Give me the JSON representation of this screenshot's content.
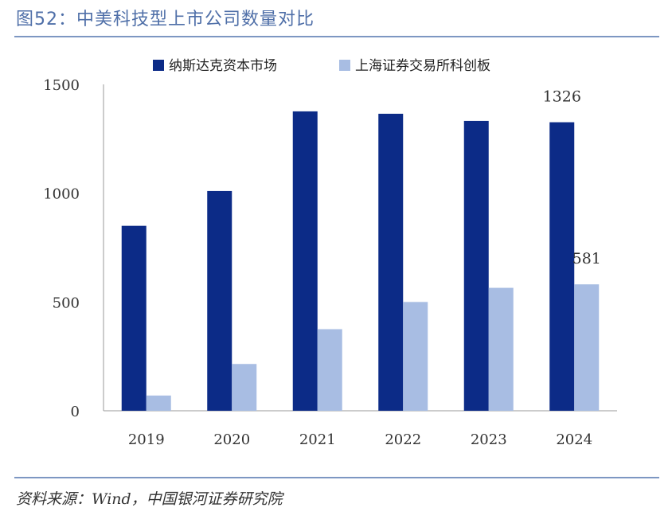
{
  "title": "图52：中美科技型上市公司数量对比",
  "source": "资料来源：Wind，中国银河证券研究院",
  "chart_data": {
    "type": "bar",
    "categories": [
      "2019",
      "2020",
      "2021",
      "2022",
      "2023",
      "2024"
    ],
    "series": [
      {
        "name": "纳斯达克资本市场",
        "color": "#0c2b87",
        "values": [
          850,
          1010,
          1376,
          1365,
          1332,
          1326
        ]
      },
      {
        "name": "上海证券交易所科创板",
        "color": "#a8bde3",
        "values": [
          70,
          215,
          375,
          500,
          565,
          581
        ]
      }
    ],
    "ylim": [
      0,
      1500
    ],
    "yticks": [
      0,
      500,
      1000,
      1500
    ],
    "data_labels": [
      {
        "series": 0,
        "category": "2024",
        "text": "1326"
      },
      {
        "series": 1,
        "category": "2024",
        "text": "581"
      }
    ],
    "legend": "top"
  }
}
